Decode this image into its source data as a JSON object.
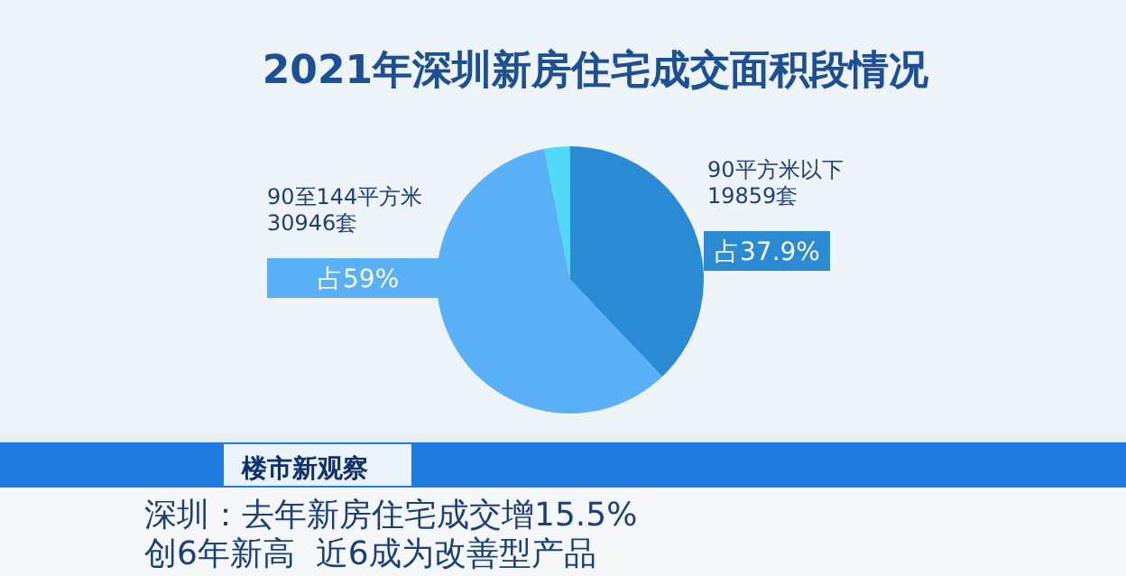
{
  "chart_data": {
    "type": "pie",
    "title": "2021年深圳新房住宅成交面积段情况",
    "categories": [
      "90平方米以下\n19859套",
      "90至144平方米\n30946套",
      null
    ],
    "values": [
      37.9,
      59,
      3.1
    ],
    "value_labels": [
      "占37.9%",
      "占59%",
      null
    ],
    "colors": [
      "#2a8ad4",
      "#5ab0f7",
      "#4fd8f8"
    ],
    "annotations": [
      "楼市新观察",
      "深圳：去年新房住宅成交增15.5%\n创6年新高  近6成为改善型产品"
    ]
  }
}
